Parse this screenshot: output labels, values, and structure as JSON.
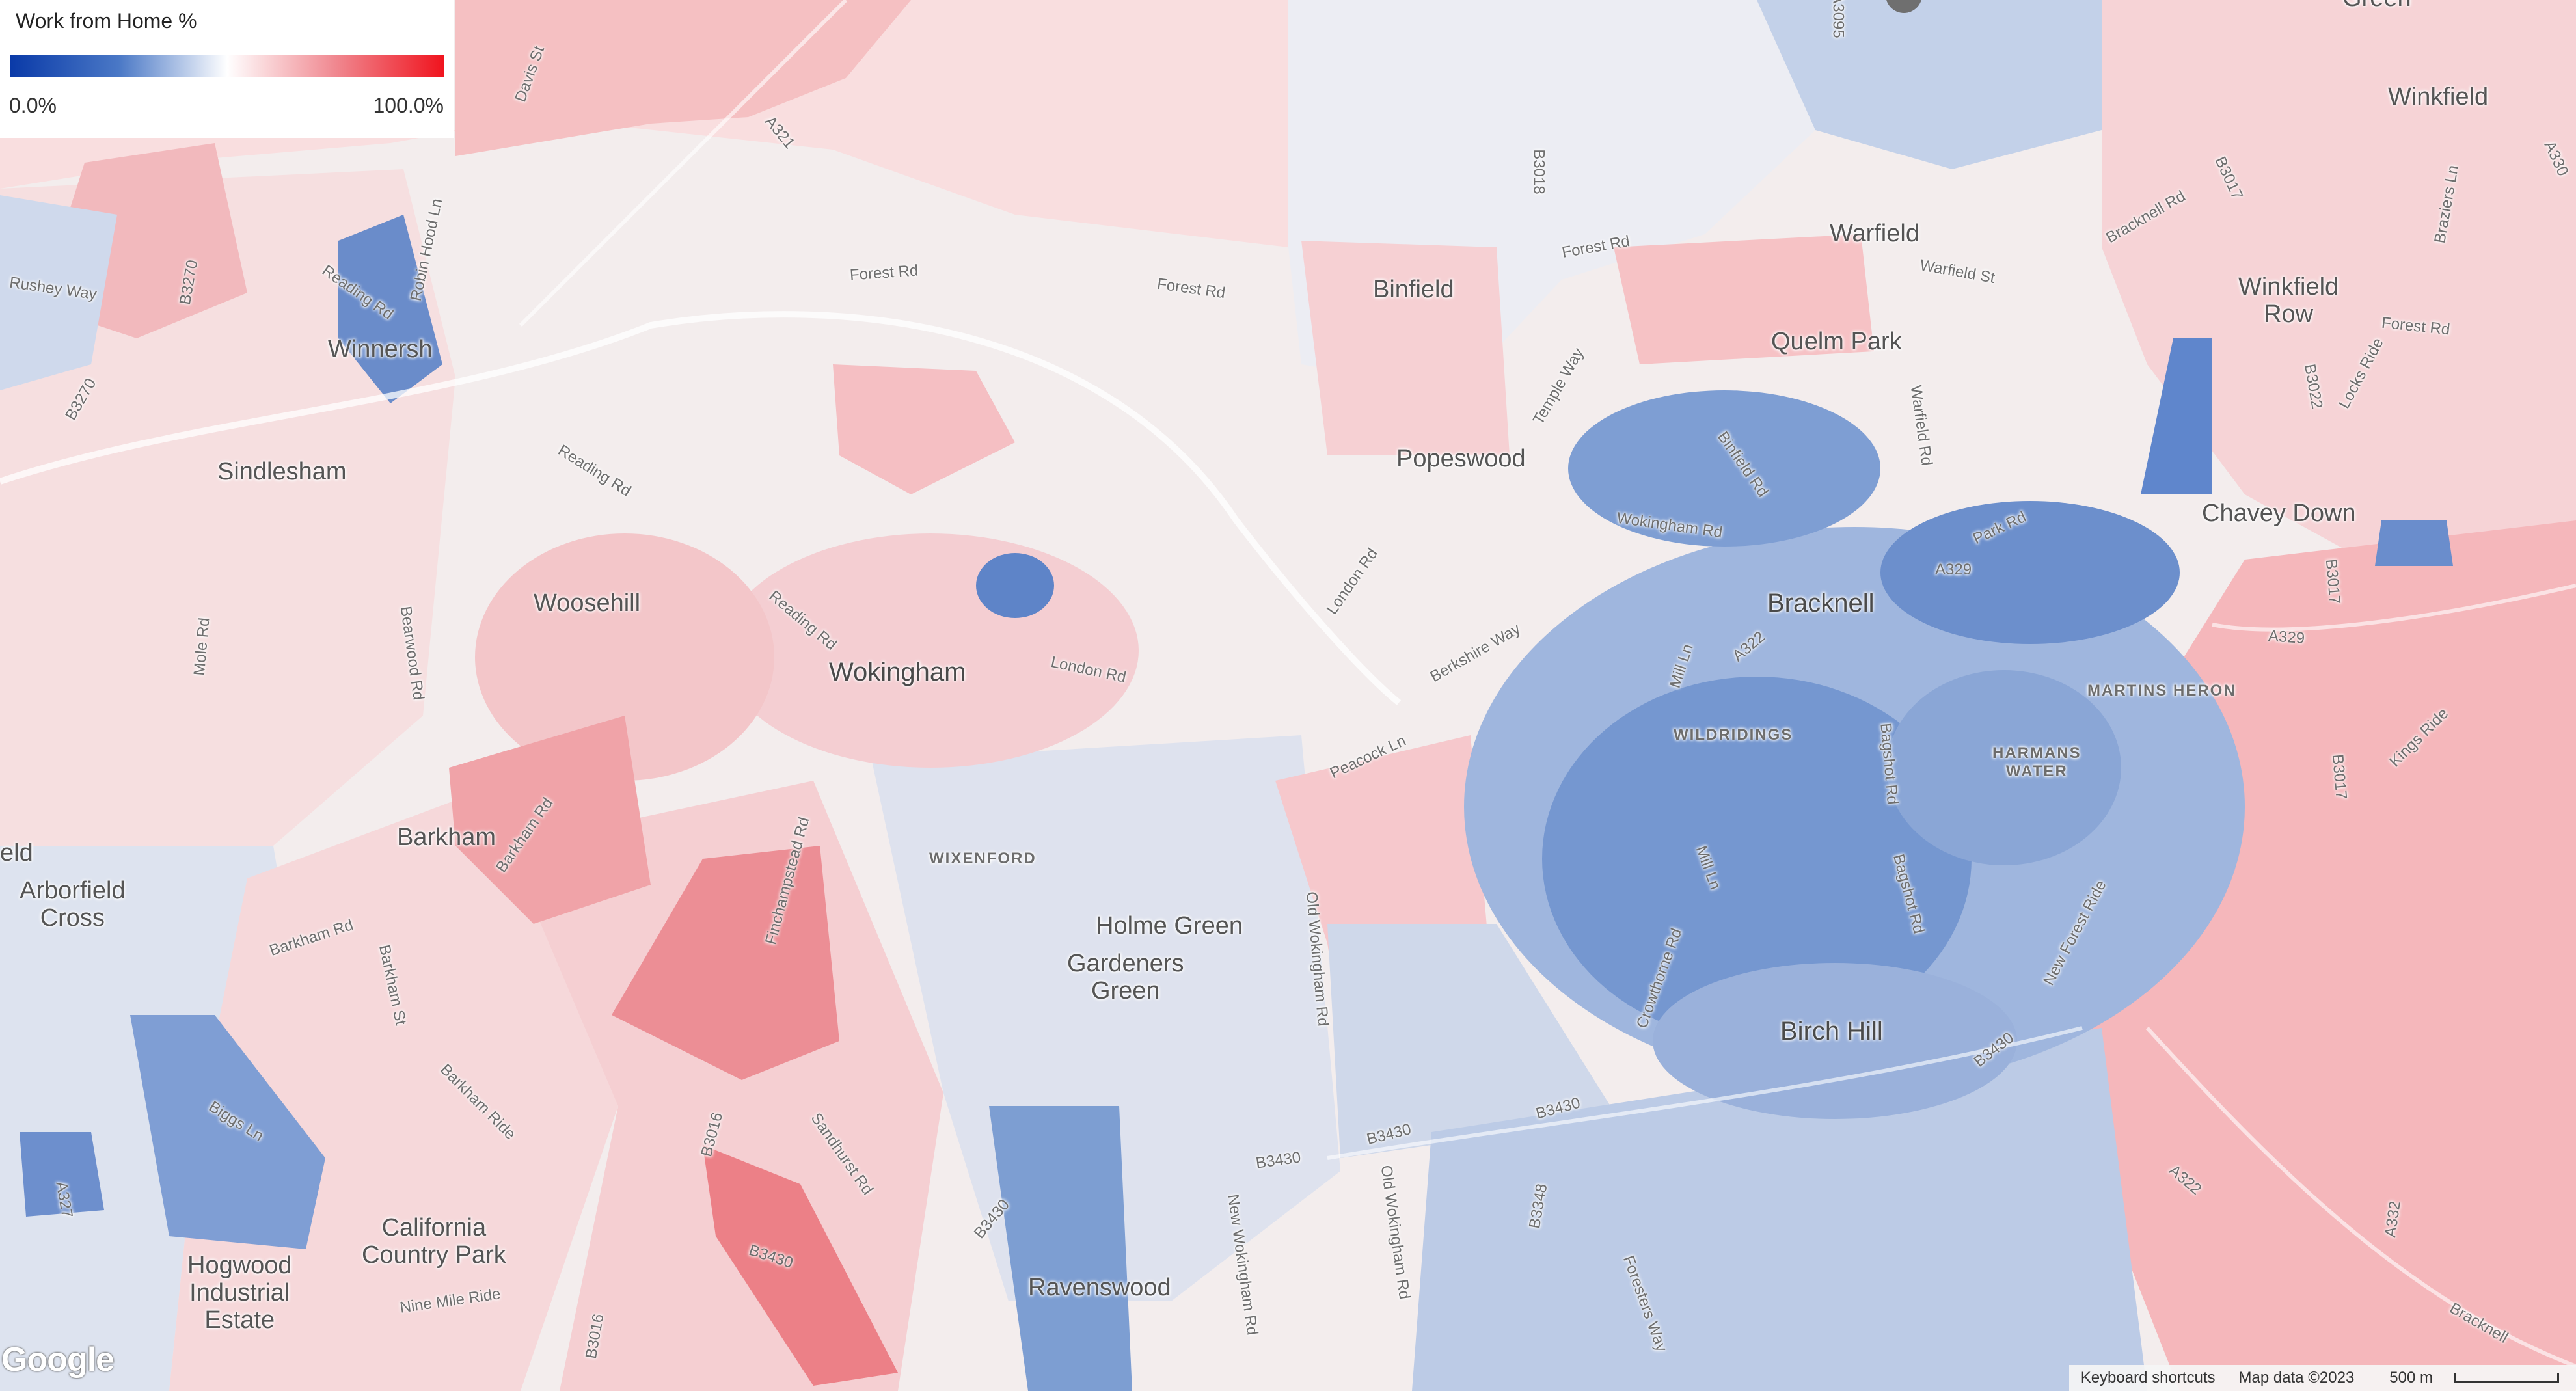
{
  "legend": {
    "title": "Work from Home %",
    "min_label": "0.0%",
    "max_label": "100.0%",
    "gradient_colors": [
      "#0a3aa8",
      "#4a78c6",
      "#ffffff",
      "#f08890",
      "#f0141e"
    ]
  },
  "places": {
    "warfield": "Warfield",
    "winkfield": "Winkfield",
    "binfield": "Binfield",
    "quelm_park": "Quelm Park",
    "winkfield_row": "Winkfield\nRow",
    "winnersh": "Winnersh",
    "sindlesham": "Sindlesham",
    "popeswood": "Popeswood",
    "chavey_down": "Chavey Down",
    "woosehill": "Woosehill",
    "bracknell": "Bracknell",
    "wokingham": "Wokingham",
    "barkham": "Barkham",
    "arborfield_cross": "Arborfield\nCross",
    "holme_green": "Holme Green",
    "gardeners_green": "Gardeners\nGreen",
    "birch_hill": "Birch Hill",
    "california_country_park": "California\nCountry Park",
    "hogwood_industrial_estate": "Hogwood\nIndustrial\nEstate",
    "ravenswood": "Ravenswood",
    "eld": "eld",
    "green_top": "Green"
  },
  "areas": {
    "wixenford": "WIXENFORD",
    "wildridings": "WILDRIDINGS",
    "martins_heron": "MARTINS HERON",
    "harmans_water": "HARMANS\nWATER"
  },
  "roads": {
    "davis_st": "Davis St",
    "a321": "A321",
    "a3095": "A3095",
    "b3018": "B3018",
    "forest_rd_1": "Forest Rd",
    "forest_rd_2": "Forest Rd",
    "forest_rd_3": "Forest Rd",
    "forest_rd_4": "Forest Rd",
    "warfield_st": "Warfield St",
    "bracknell_rd": "Bracknell Rd",
    "b3017_top": "B3017",
    "a330": "A330",
    "braziers_ln": "Braziers Ln",
    "b3270": "B3270",
    "rushey_way": "Rushey Way",
    "reading_rd_1": "Reading Rd",
    "robin_hood_ln": "Robin Hood Ln",
    "b3270_b": "B3270",
    "temple_way": "Temple Way",
    "binfield_rd": "Binfield Rd",
    "warfield_rd": "Warfield Rd",
    "b3022": "B3022",
    "lock_ride": "Locks Ride",
    "reading_rd_2": "Reading Rd",
    "wokingham_rd": "Wokingham Rd",
    "a329_1": "A329",
    "park_rd": "Park Rd",
    "b3017_mid": "B3017",
    "a329_2": "A329",
    "bearwood_rd": "Bearwood Rd",
    "mole_rd": "Mole Rd",
    "reading_rd_3": "Reading Rd",
    "london_rd_1": "London Rd",
    "london_rd_2": "London Rd",
    "berkshire_way": "Berkshire Way",
    "mill_ln_1": "Mill Ln",
    "a322": "A322",
    "peacock_ln": "Peacock Ln",
    "bagshot_rd_1": "Bagshot Rd",
    "kings_ride": "Kings Ride",
    "b3017_low": "B3017",
    "barkham_rd_1": "Barkham Rd",
    "finchampstead_rd": "Finchampstead Rd",
    "mill_ln_2": "Mill Ln",
    "bagshot_rd_2": "Bagshot Rd",
    "old_wokingham_rd_1": "Old Wokingham Rd",
    "crowthorne_rd": "Crowthorne Rd",
    "new_forest_ride": "New Forest Ride",
    "barkham_rd_2": "Barkham Rd",
    "barkham_st": "Barkham St",
    "b3430_1": "B3430",
    "biggs_ln": "Biggs Ln",
    "barkham_ride": "Barkham Ride",
    "b3016_1": "B3016",
    "sandhurst_rd": "Sandhurst Rd",
    "b3430_2": "B3430",
    "b3430_3": "B3430",
    "b3430_4": "B3430",
    "a327": "A327",
    "a322_2": "A322",
    "a332": "A332",
    "b3348": "B3348",
    "new_wokingham_rd": "New Wokingham Rd",
    "old_wokingham_rd_2": "Old Wokingham Rd",
    "foresters_way": "Foresters Way",
    "b3430_5": "B3430",
    "nine_mile_ride": "Nine Mile Ride",
    "b3016_2": "B3016",
    "bracknell_rd_2": "Bracknell"
  },
  "attribution": {
    "keyboard_shortcuts": "Keyboard shortcuts",
    "map_data": "Map data ©2023",
    "scale": "500 m"
  },
  "logo": "Google"
}
